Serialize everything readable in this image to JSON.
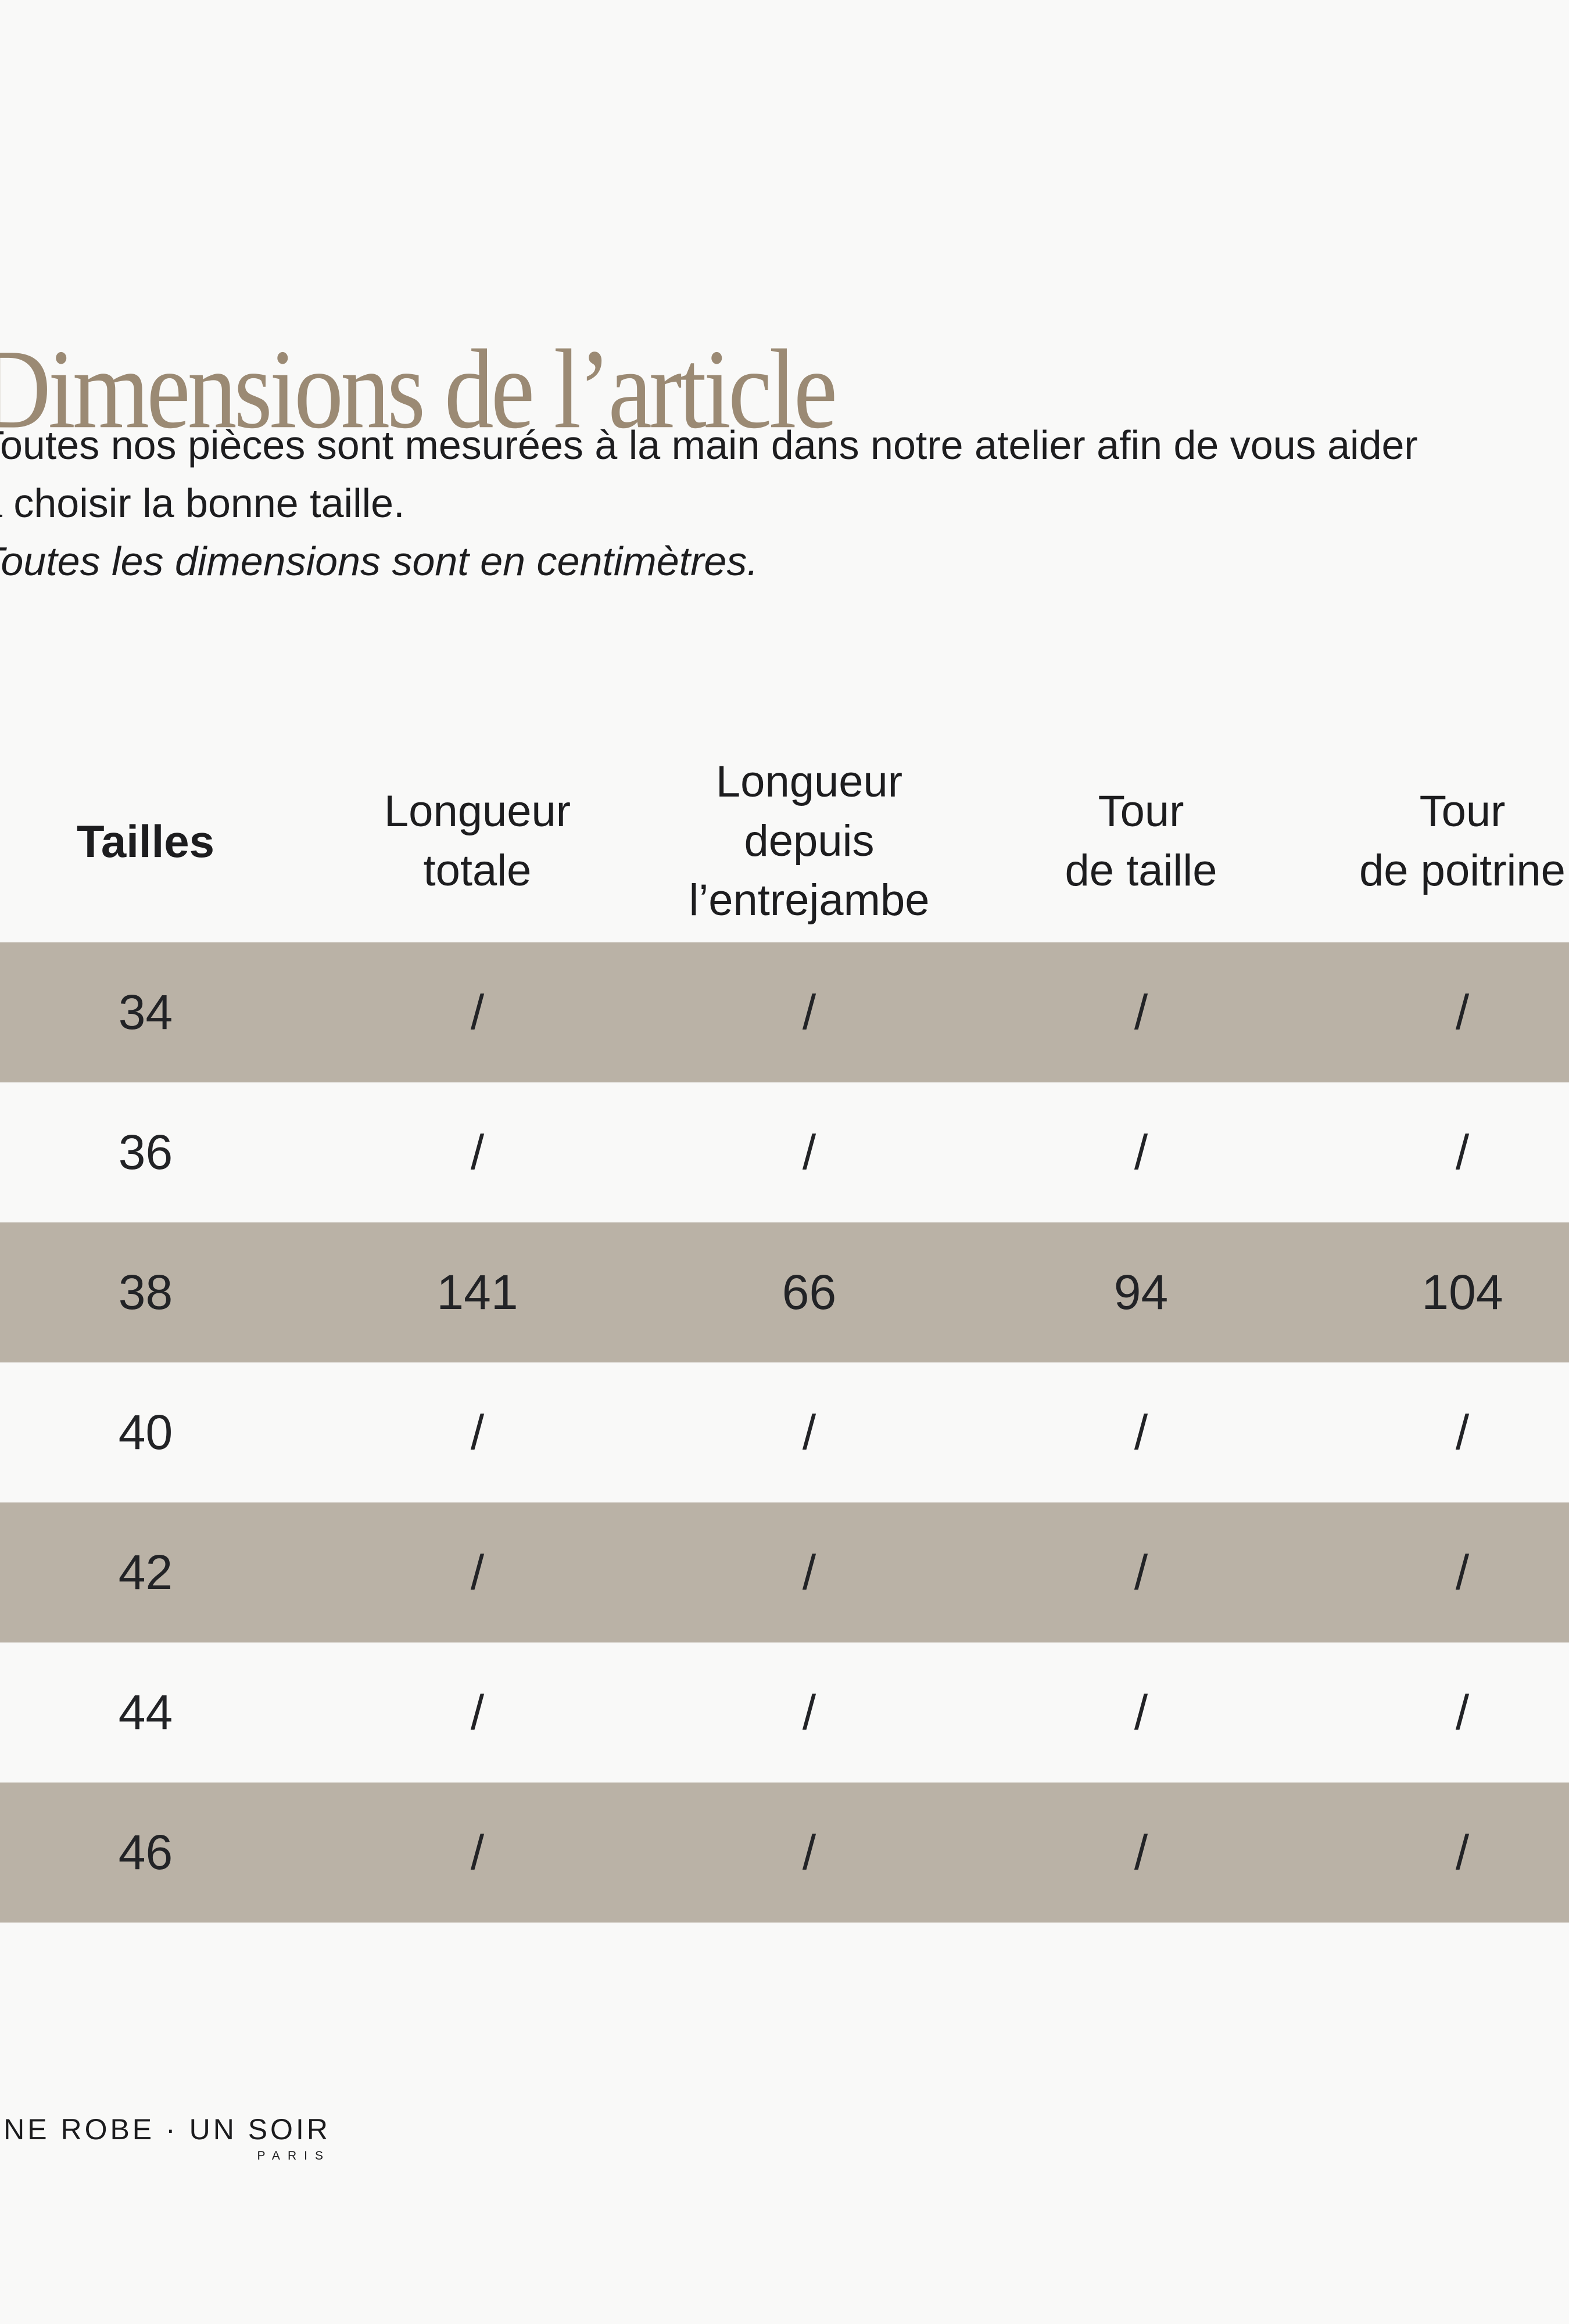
{
  "page": {
    "title": "Dimensions de l’article",
    "intro": {
      "line1": "Toutes nos pièces sont mesurées à la main dans notre atelier afin de vous aider",
      "line2": "à choisir la bonne taille.",
      "note": "Toutes les dimensions sont en centimètres."
    }
  },
  "table": {
    "headers": [
      "Tailles",
      "Longueur\ntotale",
      "Longueur\ndepuis\nl’entrejambe",
      "Tour\nde taille",
      "Tour\nde poitrine"
    ],
    "rows": [
      {
        "size": "34",
        "values": [
          "/",
          "/",
          "/",
          "/"
        ],
        "shaded": true
      },
      {
        "size": "36",
        "values": [
          "/",
          "/",
          "/",
          "/"
        ],
        "shaded": false
      },
      {
        "size": "38",
        "values": [
          "141",
          "66",
          "94",
          "104"
        ],
        "shaded": true
      },
      {
        "size": "40",
        "values": [
          "/",
          "/",
          "/",
          "/"
        ],
        "shaded": false
      },
      {
        "size": "42",
        "values": [
          "/",
          "/",
          "/",
          "/"
        ],
        "shaded": true
      },
      {
        "size": "44",
        "values": [
          "/",
          "/",
          "/",
          "/"
        ],
        "shaded": false
      },
      {
        "size": "46",
        "values": [
          "/",
          "/",
          "/",
          "/"
        ],
        "shaded": true
      }
    ]
  },
  "footer": {
    "brand": "UNE ROBE · UN SOIR",
    "city": "PARIS"
  },
  "colors": {
    "background": "#f9f9f8",
    "title_accent": "#9b8a74",
    "row_shaded": "#bab2a6",
    "text": "#1d1d1f"
  }
}
